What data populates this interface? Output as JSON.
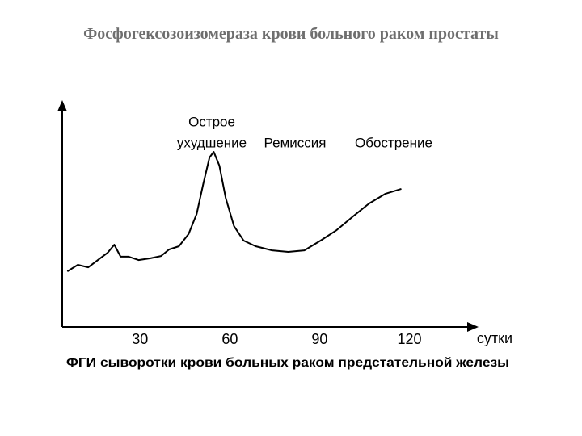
{
  "chart_data": {
    "type": "line",
    "title": "Фосфогексозоизомераза крови больного раком простаты",
    "xlabel": "сутки",
    "caption": "ФГИ сыворотки крови больных раком предстательной железы",
    "annotations": [
      [
        "Острое",
        "ухудшение"
      ],
      [
        "Ремиссия"
      ],
      [
        "Обострение"
      ]
    ],
    "x": [
      5.7,
      9.2,
      12.7,
      15.9,
      19.2,
      21.4,
      23.5,
      26.2,
      29.5,
      33.5,
      37.0,
      39.7,
      43.0,
      46.2,
      48.9,
      51.1,
      53.2,
      54.6,
      56.5,
      58.6,
      61.4,
      64.6,
      68.6,
      74.1,
      79.5,
      84.9,
      90.3,
      95.7,
      101.1,
      106.5,
      111.9,
      117.3
    ],
    "values": [
      24.6,
      27.5,
      26.4,
      29.6,
      32.9,
      36.4,
      31.1,
      31.1,
      29.6,
      30.4,
      31.4,
      34.3,
      35.7,
      41.1,
      50.0,
      63.2,
      75.0,
      77.5,
      71.4,
      57.1,
      44.6,
      38.2,
      35.7,
      33.9,
      33.2,
      33.9,
      38.2,
      42.9,
      48.9,
      54.6,
      58.9,
      61.1
    ],
    "color": "#000000",
    "xlim": [
      4,
      142
    ],
    "xticks": [
      30,
      60,
      90,
      120
    ],
    "ylim": [
      0,
      100
    ]
  }
}
